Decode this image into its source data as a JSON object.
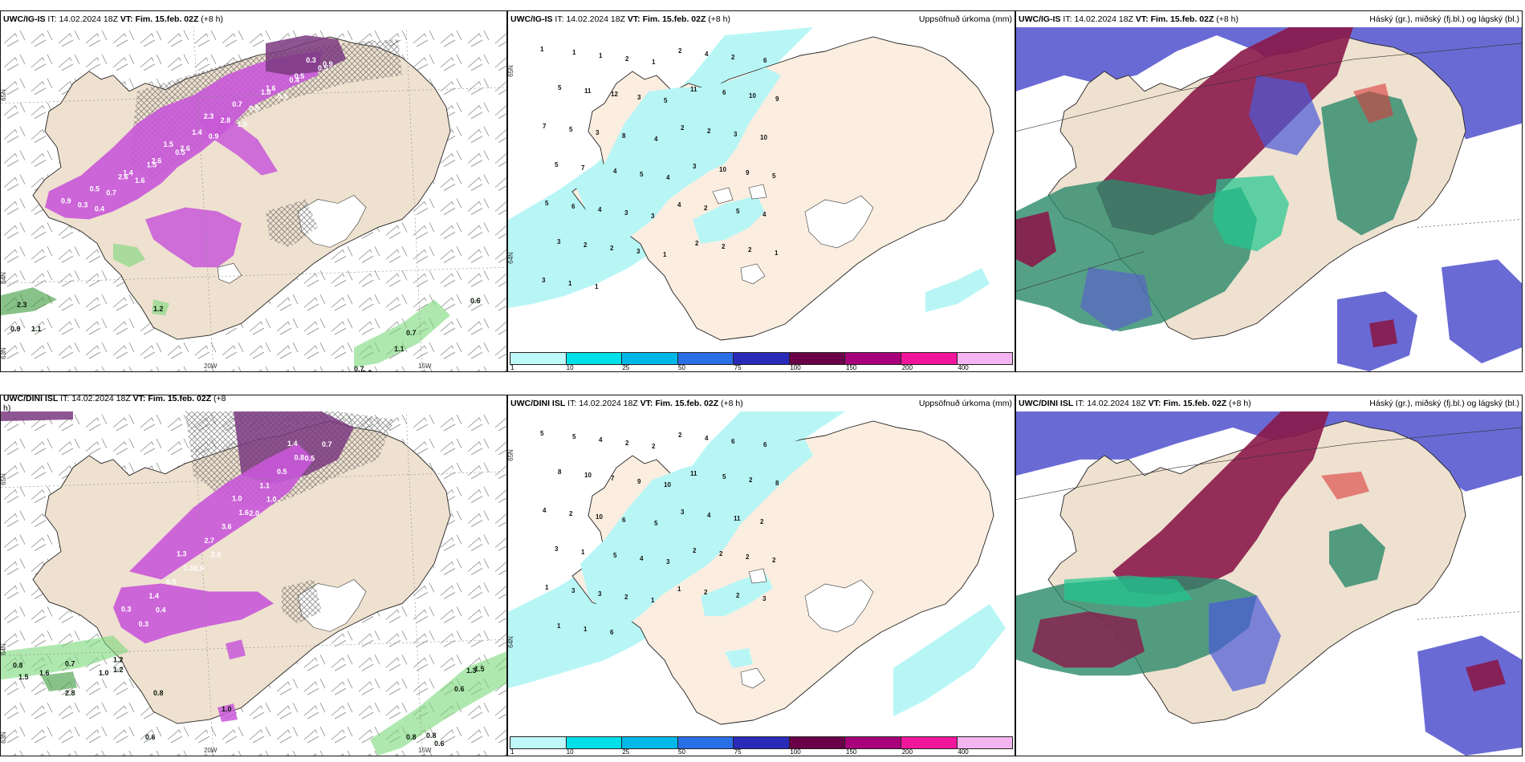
{
  "panels": {
    "p1": {
      "model": "UWC/IG-IS",
      "it_label": "IT:",
      "it": "14.02.2024 18Z",
      "vt_label": "VT:",
      "vt": "Fim. 15.feb. 02Z",
      "lead": "(+8 h)",
      "lat_a": "65N",
      "lat_b": "64N",
      "lat_c": "63N",
      "lon_a": "20W",
      "lon_b": "15W"
    },
    "p2": {
      "model": "UWC/IG-IS",
      "it_label": "IT:",
      "it": "14.02.2024 18Z",
      "vt_label": "VT:",
      "vt": "Fim. 15.feb. 02Z",
      "lead": "(+8 h)",
      "field": "Uppsöfnuð úrkoma (mm)",
      "lat_a": "65N",
      "lat_b": "64N"
    },
    "p3": {
      "model": "UWC/IG-IS",
      "it_label": "IT:",
      "it": "14.02.2024 18Z",
      "vt_label": "VT:",
      "vt": "Fim. 15.feb. 02Z",
      "lead": "(+8 h)",
      "field": "Háský (gr.), miðský (fj.bl.) og lágský (bl.)"
    },
    "p4": {
      "model": "UWC/DINI ISL",
      "it_label": "IT:",
      "it": "14.02.2024 18Z",
      "vt_label": "VT:",
      "vt": "Fim. 15.feb. 02Z",
      "lead": "(+8",
      "lead_wrap": "h)",
      "lat_a": "65N",
      "lat_b": "64N",
      "lat_c": "63N",
      "lon_a": "20W",
      "lon_b": "15W"
    },
    "p5": {
      "model": "UWC/DINI ISL",
      "it_label": "IT:",
      "it": "14.02.2024 18Z",
      "vt_label": "VT:",
      "vt": "Fim. 15.feb. 02Z",
      "lead": "(+8 h)",
      "field": "Uppsöfnuð úrkoma (mm)",
      "lat_a": "65N",
      "lat_b": "64N"
    },
    "p6": {
      "model": "UWC/DINI ISL",
      "it_label": "IT:",
      "it": "14.02.2024 18Z",
      "vt_label": "VT:",
      "vt": "Fim. 15.feb. 02Z",
      "lead": "(+8 h)",
      "field": "Háský (gr.), miðský (fj.bl.) og lágský (bl.)"
    }
  },
  "colorbar": {
    "labels": [
      "1",
      "10",
      "25",
      "50",
      "75",
      "100",
      "150",
      "200",
      "400"
    ],
    "colors": [
      "#bff8f8",
      "#00e0e8",
      "#00b8e8",
      "#2a6ee8",
      "#2a2ab8",
      "#6a0048",
      "#a8007a",
      "#f0169c",
      "#f4b4f0"
    ]
  },
  "map_values": {
    "p1": [
      "0.9",
      "0.3",
      "0.4",
      "0.5",
      "0.7",
      "1.4",
      "2.6",
      "1.6",
      "2.6",
      "1.5",
      "1.5",
      "2.6",
      "0.5",
      "1.4",
      "0.9",
      "2.3",
      "2.8",
      "1.0",
      "0.7",
      "0.8",
      "1.6",
      "1.8",
      "0.9",
      "0.5",
      "0.4",
      "0.3",
      "0.9",
      "0.5"
    ],
    "p1_green": [
      "2.3",
      "0.9",
      "1.1",
      "1.2",
      "0.6",
      "0.7",
      "1.1",
      "0.6",
      "0.7"
    ],
    "p2": [
      "1",
      "1",
      "1",
      "2",
      "1",
      "2",
      "4",
      "2",
      "6",
      "5",
      "11",
      "12",
      "3",
      "5",
      "11",
      "6",
      "10",
      "9",
      "7",
      "5",
      "3",
      "8",
      "4",
      "2",
      "2",
      "3",
      "10",
      "5",
      "7",
      "4",
      "5",
      "4",
      "3",
      "10",
      "9",
      "5",
      "5",
      "6",
      "4",
      "3",
      "3",
      "4",
      "2",
      "5",
      "4",
      "3",
      "2",
      "2",
      "3",
      "1",
      "2",
      "2",
      "2",
      "1",
      "3",
      "1",
      "1"
    ],
    "p4": [
      "0.3",
      "0.3",
      "0.4",
      "1.4",
      "0.5",
      "1.3",
      "1.3",
      "0.9",
      "2.6",
      "2.7",
      "3.6",
      "1.6",
      "1.0",
      "2.0",
      "1.0",
      "1.1",
      "0.5",
      "0.8",
      "1.4",
      "0.5",
      "0.7"
    ],
    "p4_green": [
      "0.8",
      "1.6",
      "0.7",
      "1.2",
      "1.0",
      "1.2",
      "1.5",
      "2.8",
      "0.8",
      "0.6",
      "1.5",
      "1.3",
      "0.6",
      "0.8",
      "0.8",
      "0.6",
      "1.0"
    ],
    "p5": [
      "5",
      "5",
      "4",
      "2",
      "2",
      "2",
      "4",
      "6",
      "6",
      "8",
      "10",
      "7",
      "9",
      "10",
      "11",
      "5",
      "2",
      "8",
      "4",
      "2",
      "10",
      "6",
      "5",
      "3",
      "4",
      "11",
      "2",
      "3",
      "1",
      "5",
      "4",
      "3",
      "2",
      "2",
      "2",
      "2",
      "1",
      "3",
      "3",
      "2",
      "1",
      "1",
      "2",
      "2",
      "3",
      "1",
      "1",
      "6"
    ]
  }
}
